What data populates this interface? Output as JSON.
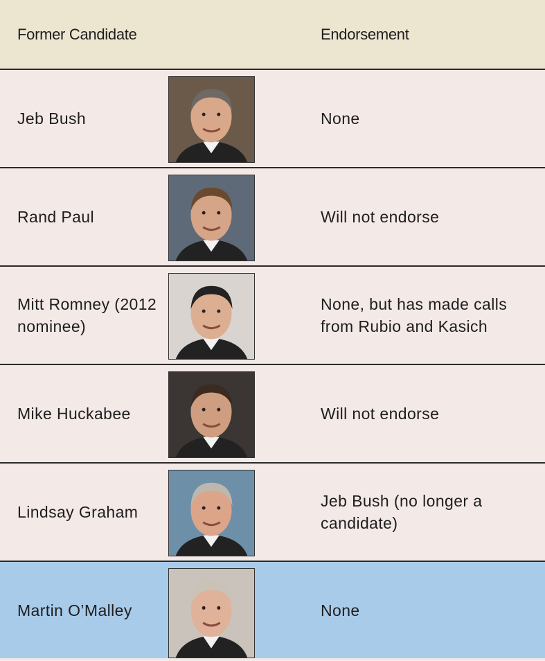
{
  "header": {
    "columns": [
      "Former Candidate",
      "Endorsement"
    ]
  },
  "table": {
    "rows": [
      {
        "name": "Jeb Bush",
        "endorsement": "None"
      },
      {
        "name": "Rand Paul",
        "endorsement": "Will not endorse"
      },
      {
        "name": "Mitt Romney (2012 nominee)",
        "endorsement": "None, but has made calls from Rubio and Kasich"
      },
      {
        "name": "Mike Huckabee",
        "endorsement": "Will not endorse"
      },
      {
        "name": "Lindsay Graham",
        "endorsement": "Jeb Bush (no longer a candidate)"
      },
      {
        "name": "Martin O’Malley",
        "endorsement": "None"
      }
    ]
  }
}
